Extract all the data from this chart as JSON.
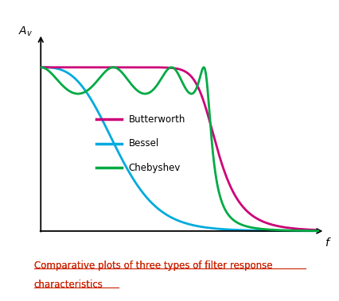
{
  "title": "Comparative plots of three types of filter response\ncharacteristics",
  "title_color": "#cc2200",
  "title_fontsize": 8.5,
  "background_color": "#ffffff",
  "border_color": "#e07820",
  "border_linewidth": 4,
  "butterworth_color": "#cc0077",
  "bessel_color": "#00aadd",
  "chebyshev_color": "#00aa44",
  "legend_labels": [
    "Butterworth",
    "Bessel",
    "Chebyshev"
  ],
  "xlabel": "f",
  "ylabel": "A_v",
  "line_width": 2.0,
  "figsize": [
    4.27,
    3.79
  ],
  "dpi": 100
}
